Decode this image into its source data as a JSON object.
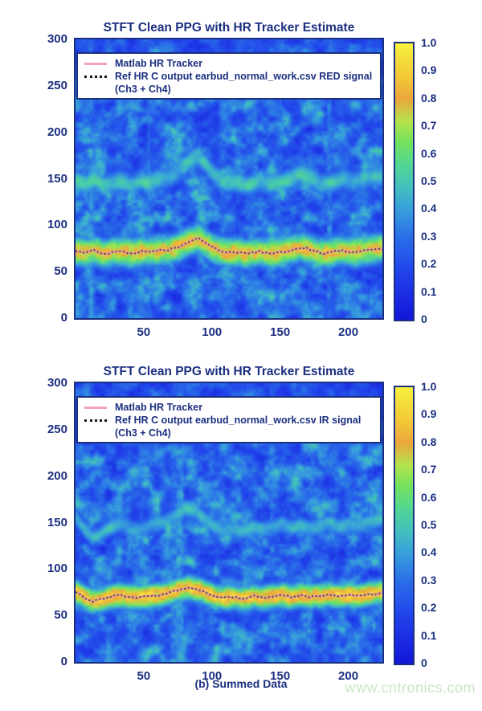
{
  "page": {
    "caption": "(b) Summed Data",
    "watermark": "www.cntronics.com"
  },
  "colors": {
    "text_navy": "#1b2f80",
    "frame_navy": "#1b2f80",
    "matlab_pink": "#f2a3b8",
    "legend_dot": "#141414",
    "ref_line": "#3a3208",
    "watermark_green": "#c9e6c4"
  },
  "colormap": {
    "stops": [
      [
        0.0,
        "#1216d8"
      ],
      [
        0.08,
        "#1a2ae2"
      ],
      [
        0.18,
        "#2145ea"
      ],
      [
        0.3,
        "#2a6fe8"
      ],
      [
        0.4,
        "#379fdc"
      ],
      [
        0.48,
        "#43c0bc"
      ],
      [
        0.56,
        "#52d694"
      ],
      [
        0.64,
        "#72e15e"
      ],
      [
        0.72,
        "#b5e24a"
      ],
      [
        0.8,
        "#eca63c"
      ],
      [
        0.88,
        "#f2c937"
      ],
      [
        1.0,
        "#f9f13d"
      ]
    ]
  },
  "chart_data": [
    {
      "type": "heatmap",
      "title": "STFT Clean PPG with HR Tracker Estimate",
      "xlabel": "",
      "ylabel": "",
      "x_range": [
        0,
        225
      ],
      "y_range": [
        0,
        300
      ],
      "x_ticks": [
        50,
        100,
        150,
        200
      ],
      "y_ticks": [
        0,
        50,
        100,
        150,
        200,
        250,
        300
      ],
      "colorbar_range": [
        0,
        1
      ],
      "colorbar_ticks": [
        "1.0",
        "0.9",
        "0.8",
        "0.7",
        "0.6",
        "0.5",
        "0.4",
        "0.3",
        "0.2",
        "0.1",
        "0"
      ],
      "grid": false,
      "legend_position": "top",
      "legend": [
        {
          "label": "Matlab HR Tracker",
          "style": "pink-solid"
        },
        {
          "label": "Ref HR C output earbud_normal_work.csv RED signal",
          "label2": "(Ch3 + Ch4)",
          "style": "black-dotted"
        }
      ],
      "hr_track": {
        "x": [
          0,
          8,
          14,
          20,
          27,
          34,
          41,
          48,
          55,
          62,
          69,
          76,
          83,
          90,
          96,
          103,
          110,
          118,
          126,
          134,
          142,
          150,
          158,
          165,
          172,
          180,
          188,
          196,
          204,
          212,
          219,
          225
        ],
        "y": [
          72,
          70,
          73,
          69,
          71,
          72,
          70,
          72,
          71,
          73,
          74,
          77,
          82,
          86,
          80,
          74,
          71,
          71,
          69,
          72,
          70,
          71,
          73,
          76,
          74,
          70,
          71,
          73,
          71,
          73,
          74,
          75
        ]
      },
      "heatmap": {
        "seed": 7,
        "band_sigma": 12,
        "band_gain": 1.0,
        "harmonic_gain": 0.62,
        "streak_gain": 1.0,
        "description": "STFT magnitude (normalized 0-1): strong warm band at HR fundamental ~70 BPM, weaker harmonic band ~140-150, vertical motion-artifact streaks, blue background with cyan-green noise blobs"
      }
    },
    {
      "type": "heatmap",
      "title": "STFT Clean PPG with HR Tracker Estimate",
      "xlabel": "",
      "ylabel": "",
      "x_range": [
        0,
        225
      ],
      "y_range": [
        0,
        300
      ],
      "x_ticks": [
        50,
        100,
        150,
        200
      ],
      "y_ticks": [
        0,
        50,
        100,
        150,
        200,
        250,
        300
      ],
      "colorbar_range": [
        0,
        1
      ],
      "colorbar_ticks": [
        "1.0",
        "0.9",
        "0.8",
        "0.7",
        "0.6",
        "0.5",
        "0.4",
        "0.3",
        "0.2",
        "0.1",
        "0"
      ],
      "grid": false,
      "legend_position": "top",
      "legend": [
        {
          "label": "Matlab HR Tracker",
          "style": "pink-solid"
        },
        {
          "label": "Ref HR C output earbud_normal_work.csv IR signal",
          "label2": "(Ch3 + Ch4)",
          "style": "black-dotted"
        }
      ],
      "hr_track": {
        "x": [
          0,
          6,
          12,
          18,
          25,
          32,
          39,
          46,
          53,
          60,
          67,
          74,
          81,
          88,
          95,
          102,
          109,
          116,
          123,
          130,
          137,
          144,
          151,
          158,
          165,
          172,
          179,
          186,
          193,
          200,
          207,
          214,
          220,
          225
        ],
        "y": [
          76,
          70,
          65,
          67,
          70,
          72,
          70,
          69,
          71,
          72,
          74,
          77,
          80,
          79,
          75,
          71,
          69,
          70,
          68,
          71,
          69,
          70,
          72,
          70,
          72,
          70,
          71,
          73,
          71,
          72,
          71,
          73,
          74,
          75
        ]
      },
      "heatmap": {
        "seed": 42,
        "band_sigma": 10,
        "band_gain": 1.1,
        "harmonic_gain": 0.58,
        "streak_gain": 0.95,
        "description": "STFT magnitude (normalized 0-1): bright yellow band at HR fundamental ~70 BPM, green harmonic band ~140, vertical streaks, blue background with cyan-green noise blobs"
      }
    }
  ]
}
